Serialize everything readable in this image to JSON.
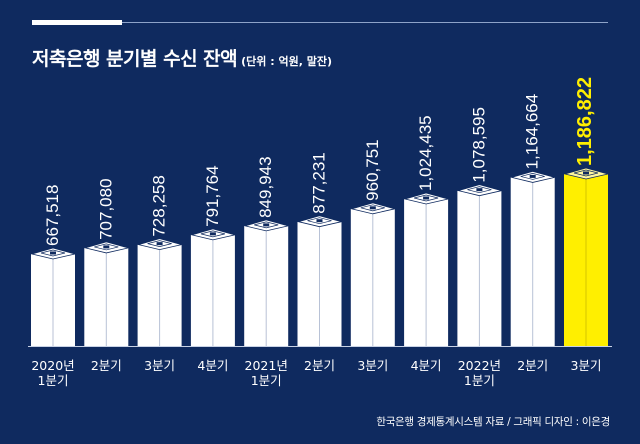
{
  "header": {
    "title": "저축은행 분기별 수신 잔액",
    "unit": "(단위 : 억원, 말잔)"
  },
  "source": "한국은행 경제통계시스템 자료 / 그래픽 디자인 : 이은경",
  "colors": {
    "background": "#0f2a5f",
    "bar": "#ffffff",
    "highlight": "#ffef00",
    "text": "#ffffff"
  },
  "icons": [
    "bundle-of-cash-icon"
  ],
  "chart_data": {
    "type": "bar",
    "title": "저축은행 분기별 수신 잔액",
    "unit": "(단위 : 억원, 말잔)",
    "categories": [
      [
        "2020년",
        "1분기"
      ],
      [
        "2분기"
      ],
      [
        "3분기"
      ],
      [
        "4분기"
      ],
      [
        "2021년",
        "1분기"
      ],
      [
        "2분기"
      ],
      [
        "3분기"
      ],
      [
        "4분기"
      ],
      [
        "2022년",
        "1분기"
      ],
      [
        "2분기"
      ],
      [
        "3분기"
      ]
    ],
    "values": [
      667518,
      707080,
      728258,
      791764,
      849943,
      877231,
      960751,
      1024435,
      1078595,
      1164664,
      1186822
    ],
    "value_labels": [
      "667,518",
      "707,080",
      "728,258",
      "791,764",
      "849,943",
      "877,231",
      "960,751",
      "1,024,435",
      "1,078,595",
      "1,164,664",
      "1,186,822"
    ],
    "highlight_index": 10,
    "grid": false,
    "legend": "none"
  }
}
